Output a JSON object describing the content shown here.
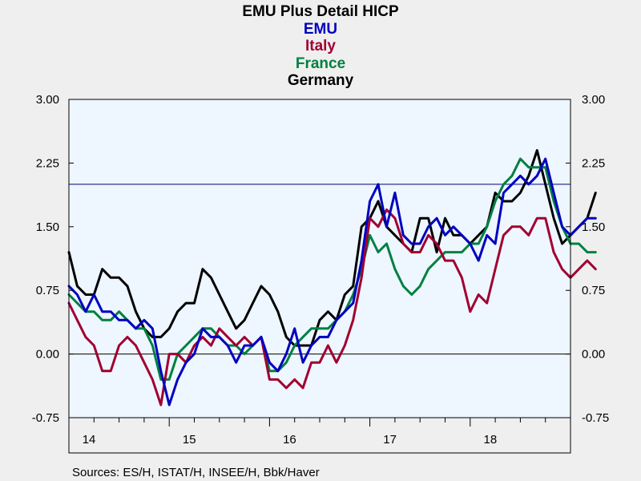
{
  "chart_data": {
    "type": "line",
    "title": "EMU Plus Detail HICP",
    "legend_titles": [
      {
        "name": "EMU",
        "color": "#0000c0"
      },
      {
        "name": "Italy",
        "color": "#a00030"
      },
      {
        "name": "France",
        "color": "#008040"
      },
      {
        "name": "Germany",
        "color": "#000000"
      }
    ],
    "y_ticks_left": [
      "3.00",
      "2.25",
      "1.50",
      "0.75",
      "0.00",
      "-0.75"
    ],
    "y_ticks_right": [
      "3.00",
      "2.25",
      "1.50",
      "0.75",
      "0.00",
      "-0.75"
    ],
    "y_tick_values": [
      3.0,
      2.25,
      1.5,
      0.75,
      0.0,
      -0.75
    ],
    "ylim": [
      -0.75,
      3.0
    ],
    "x_labels": [
      "14",
      "15",
      "16",
      "17",
      "18"
    ],
    "x_range_years": [
      2014.0,
      2019.0
    ],
    "reference_lines": [
      {
        "value": 2.0,
        "color": "#000080"
      },
      {
        "value": 0.0,
        "color": "#000000"
      }
    ],
    "grid": false,
    "start": "2014-01",
    "series": [
      {
        "name": "EMU",
        "color": "#0000c0",
        "values": [
          0.8,
          0.7,
          0.5,
          0.7,
          0.5,
          0.5,
          0.4,
          0.4,
          0.3,
          0.4,
          0.3,
          -0.2,
          -0.6,
          -0.3,
          -0.1,
          0.0,
          0.3,
          0.2,
          0.2,
          0.1,
          -0.1,
          0.1,
          0.1,
          0.2,
          -0.1,
          -0.2,
          0.0,
          0.3,
          -0.1,
          0.1,
          0.2,
          0.2,
          0.4,
          0.5,
          0.6,
          1.1,
          1.8,
          2.0,
          1.5,
          1.9,
          1.4,
          1.3,
          1.3,
          1.5,
          1.6,
          1.4,
          1.5,
          1.4,
          1.3,
          1.1,
          1.4,
          1.3,
          1.9,
          2.0,
          2.1,
          2.0,
          2.1,
          2.3,
          1.9,
          1.5,
          1.4,
          1.5,
          1.6,
          1.6
        ]
      },
      {
        "name": "Italy",
        "color": "#a00030",
        "values": [
          0.6,
          0.4,
          0.2,
          0.1,
          -0.2,
          -0.2,
          0.1,
          0.2,
          0.1,
          -0.1,
          -0.3,
          -0.6,
          0.0,
          0.0,
          -0.1,
          0.1,
          0.2,
          0.1,
          0.3,
          0.2,
          0.1,
          0.2,
          0.1,
          0.2,
          -0.3,
          -0.3,
          -0.4,
          -0.3,
          -0.4,
          -0.1,
          -0.1,
          0.1,
          -0.1,
          0.1,
          0.4,
          0.9,
          1.6,
          1.5,
          1.7,
          1.6,
          1.3,
          1.2,
          1.2,
          1.4,
          1.3,
          1.1,
          1.1,
          0.9,
          0.5,
          0.7,
          0.6,
          1.0,
          1.4,
          1.5,
          1.5,
          1.4,
          1.6,
          1.6,
          1.2,
          1.0,
          0.9,
          1.0,
          1.1,
          1.0
        ]
      },
      {
        "name": "France",
        "color": "#008040",
        "values": [
          0.7,
          0.6,
          0.5,
          0.5,
          0.4,
          0.4,
          0.5,
          0.4,
          0.3,
          0.3,
          0.1,
          -0.3,
          -0.3,
          0.0,
          0.1,
          0.2,
          0.3,
          0.3,
          0.2,
          0.1,
          0.1,
          0.0,
          0.1,
          0.2,
          -0.2,
          -0.2,
          -0.1,
          0.1,
          0.2,
          0.3,
          0.3,
          0.3,
          0.4,
          0.5,
          0.7,
          1.0,
          1.4,
          1.2,
          1.3,
          1.0,
          0.8,
          0.7,
          0.8,
          1.0,
          1.1,
          1.2,
          1.2,
          1.2,
          1.3,
          1.3,
          1.5,
          1.8,
          2.0,
          2.1,
          2.3,
          2.2,
          2.2,
          2.2,
          1.8,
          1.5,
          1.3,
          1.3,
          1.2,
          1.2
        ]
      },
      {
        "name": "Germany",
        "color": "#000000",
        "values": [
          1.2,
          0.8,
          0.7,
          0.7,
          1.0,
          0.9,
          0.9,
          0.8,
          0.5,
          0.3,
          0.2,
          0.2,
          0.3,
          0.5,
          0.6,
          0.6,
          1.0,
          0.9,
          0.7,
          0.5,
          0.3,
          0.4,
          0.6,
          0.8,
          0.7,
          0.5,
          0.2,
          0.1,
          0.1,
          0.1,
          0.4,
          0.5,
          0.4,
          0.7,
          0.8,
          1.5,
          1.6,
          1.8,
          1.5,
          1.4,
          1.3,
          1.2,
          1.6,
          1.6,
          1.2,
          1.6,
          1.4,
          1.4,
          1.3,
          1.4,
          1.5,
          1.9,
          1.8,
          1.8,
          1.9,
          2.1,
          2.4,
          2.0,
          1.6,
          1.3,
          1.4,
          1.5,
          1.6,
          1.9
        ]
      }
    ],
    "sources": "Sources:  ES/H, ISTAT/H, INSEE/H, Bbk/Haver"
  }
}
